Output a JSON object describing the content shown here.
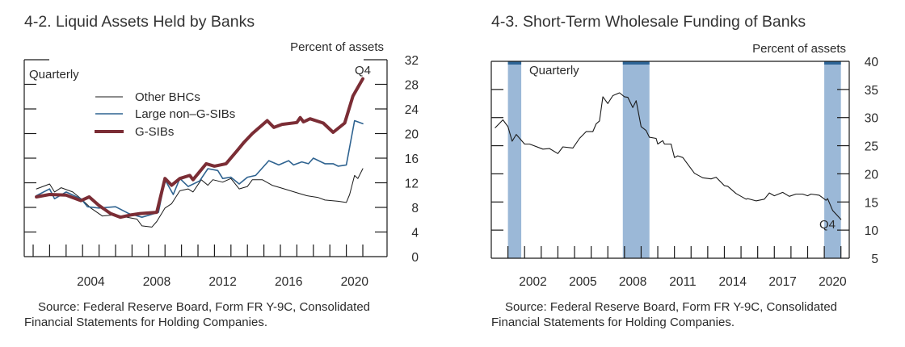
{
  "chart_data": [
    {
      "type": "line",
      "title": "4-2. Liquid Assets Held by Banks",
      "ylabel": "Percent of assets",
      "frequency_note": "Quarterly",
      "end_label": "Q4",
      "ylim": [
        0,
        32
      ],
      "yticks": [
        0,
        4,
        8,
        12,
        16,
        20,
        24,
        28,
        32
      ],
      "xticks": [
        "2004",
        "2008",
        "2012",
        "2016",
        "2020"
      ],
      "xlim": [
        2000.46,
        2022.47
      ],
      "legend_placement": "top-left",
      "source": [
        "Source: Federal Reserve Board, Form FR Y-9C, Consolidated",
        "Financial Statements for Holding Companies."
      ],
      "series": [
        {
          "name": "Other BHCs",
          "color": "#1a1a1a",
          "x": [
            2001.2,
            2002.0,
            2002.3,
            2002.7,
            2003.4,
            2003.9,
            2004.5,
            2005.2,
            2006.0,
            2006.7,
            2007.3,
            2007.6,
            2008.2,
            2008.5,
            2009.0,
            2009.4,
            2009.9,
            2010.4,
            2010.7,
            2011.2,
            2011.6,
            2011.9,
            2012.5,
            2013.0,
            2013.5,
            2014.0,
            2014.3,
            2014.9,
            2015.5,
            2016.0,
            2016.6,
            2017.1,
            2017.6,
            2018.3,
            2018.7,
            2019.5,
            2020.0,
            2020.2,
            2020.5,
            2020.7,
            2021.0
          ],
          "y": [
            11.0,
            11.8,
            10.5,
            11.2,
            10.5,
            9.4,
            7.9,
            6.6,
            6.8,
            6.4,
            6.1,
            5.0,
            4.8,
            5.7,
            7.9,
            8.6,
            10.7,
            11.0,
            10.5,
            12.5,
            11.6,
            12.5,
            12.1,
            12.7,
            11.0,
            11.4,
            12.5,
            12.5,
            11.6,
            11.2,
            10.7,
            10.3,
            9.9,
            9.6,
            9.2,
            9.0,
            8.8,
            10.1,
            13.2,
            12.7,
            14.3
          ]
        },
        {
          "name": "Large non–G-SIBs",
          "color": "#2f6390",
          "x": [
            2001.2,
            2002.0,
            2002.3,
            2003.0,
            2003.9,
            2004.3,
            2005.0,
            2006.0,
            2006.8,
            2007.6,
            2008.6,
            2009.0,
            2009.5,
            2009.9,
            2010.4,
            2011.1,
            2011.6,
            2012.2,
            2012.5,
            2013.0,
            2013.5,
            2014.0,
            2014.5,
            2015.3,
            2015.9,
            2016.5,
            2016.8,
            2017.3,
            2017.7,
            2018.0,
            2018.7,
            2019.2,
            2019.5,
            2020.0,
            2020.5,
            2021.0
          ],
          "y": [
            9.9,
            11.0,
            9.4,
            10.5,
            9.4,
            8.1,
            7.9,
            8.1,
            7.0,
            6.4,
            7.2,
            12.5,
            10.1,
            12.7,
            11.4,
            12.3,
            14.3,
            14.0,
            12.7,
            12.9,
            11.8,
            12.9,
            13.2,
            15.6,
            14.9,
            15.6,
            14.9,
            15.4,
            15.1,
            16.0,
            15.1,
            15.1,
            14.7,
            14.9,
            22.1,
            21.6
          ]
        },
        {
          "name": "G-SIBs",
          "color": "#7b2d35",
          "x": [
            2001.2,
            2002.0,
            2003.0,
            2003.9,
            2004.4,
            2005.0,
            2005.7,
            2006.3,
            2007.0,
            2007.5,
            2008.5,
            2009.0,
            2009.4,
            2009.9,
            2010.5,
            2010.7,
            2011.5,
            2012.0,
            2012.7,
            2013.4,
            2013.8,
            2014.3,
            2015.2,
            2015.6,
            2016.1,
            2017.0,
            2017.2,
            2017.4,
            2017.8,
            2018.6,
            2019.2,
            2019.9,
            2020.4,
            2021.0
          ],
          "y": [
            9.7,
            10.1,
            10.0,
            9.1,
            9.7,
            8.3,
            7.0,
            6.4,
            6.8,
            7.0,
            7.2,
            12.7,
            11.6,
            12.7,
            13.2,
            12.5,
            15.1,
            14.7,
            15.1,
            17.3,
            18.6,
            20.0,
            22.1,
            21.0,
            21.5,
            21.8,
            22.6,
            21.9,
            22.4,
            21.7,
            20.2,
            21.7,
            26.1,
            28.9
          ]
        }
      ]
    },
    {
      "type": "line",
      "title": "4-3. Short-Term Wholesale Funding of Banks",
      "ylabel": "Percent of assets",
      "frequency_note": "Quarterly",
      "end_label": "Q4",
      "ylim": [
        5,
        40
      ],
      "yticks": [
        5,
        10,
        15,
        20,
        25,
        30,
        35,
        40
      ],
      "xticks": [
        "2002",
        "2005",
        "2008",
        "2011",
        "2014",
        "2017",
        "2020"
      ],
      "xlim": [
        2000.0,
        2021.5
      ],
      "shaded_periods": [
        [
          2001.0,
          2001.8
        ],
        [
          2007.9,
          2009.5
        ],
        [
          2020.0,
          2021.0
        ]
      ],
      "shade_color": "#9bb8d7",
      "shade_cap_color": "#2d6496",
      "source": [
        "Source: Federal Reserve Board, Form FR Y-9C, Consolidated",
        "Financial Statements for Holding Companies."
      ],
      "series": [
        {
          "name": "Short-term wholesale funding",
          "color": "#1a1a1a",
          "x": [
            2000.24,
            2000.7,
            2001.0,
            2001.25,
            2001.5,
            2002.0,
            2002.3,
            2003.1,
            2003.5,
            2004.0,
            2004.3,
            2004.9,
            2005.3,
            2005.7,
            2006.1,
            2006.3,
            2006.5,
            2006.7,
            2007.0,
            2007.3,
            2007.7,
            2008.0,
            2008.2,
            2008.5,
            2008.7,
            2009.0,
            2009.3,
            2009.5,
            2009.9,
            2010.0,
            2010.3,
            2010.4,
            2010.8,
            2011.0,
            2011.2,
            2011.5,
            2012.2,
            2012.7,
            2013.2,
            2013.5,
            2014.0,
            2014.2,
            2014.7,
            2015.3,
            2015.4,
            2015.9,
            2016.4,
            2016.7,
            2017.0,
            2017.5,
            2017.9,
            2018.3,
            2018.7,
            2019.0,
            2019.2,
            2019.7,
            2020.1,
            2020.2,
            2020.5,
            2021.0
          ],
          "y": [
            28.2,
            29.6,
            28.4,
            25.8,
            27.0,
            25.3,
            25.3,
            24.4,
            24.5,
            23.6,
            24.8,
            24.6,
            26.3,
            27.5,
            27.5,
            28.9,
            29.4,
            33.7,
            32.5,
            33.9,
            34.4,
            33.7,
            33.6,
            31.8,
            33.0,
            28.4,
            27.7,
            26.5,
            26.3,
            25.3,
            25.9,
            25.3,
            25.3,
            22.9,
            23.2,
            22.9,
            20.1,
            19.3,
            19.1,
            19.4,
            17.9,
            17.8,
            16.5,
            15.5,
            15.6,
            15.2,
            15.5,
            16.6,
            16.1,
            16.7,
            16.0,
            16.4,
            16.4,
            16.1,
            16.4,
            16.2,
            15.3,
            15.6,
            13.5,
            11.9
          ]
        }
      ]
    }
  ]
}
